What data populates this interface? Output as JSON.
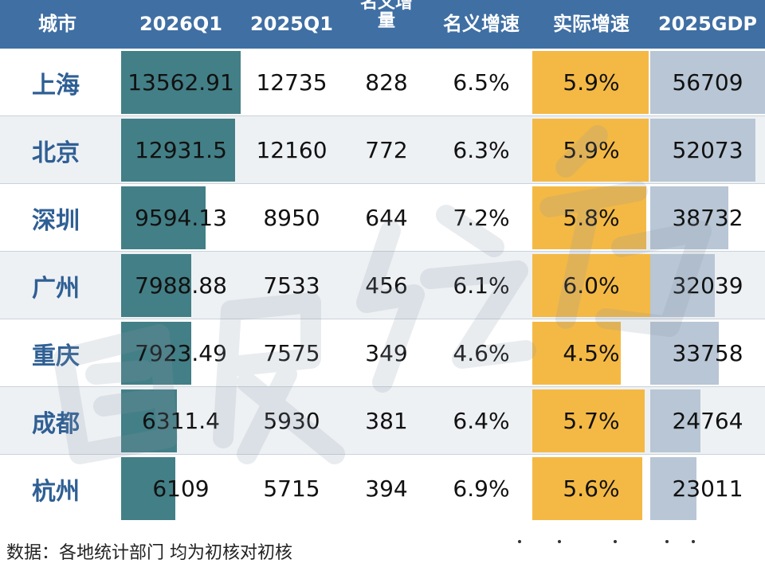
{
  "headers": {
    "city": "城市",
    "q1_2026": "2026Q1",
    "q1_2025": "2025Q1",
    "nominal_increase_partial": "名义增\n量",
    "nominal_growth": "名义增速",
    "real_growth": "实际增速",
    "gdp_2025": "2025GDP"
  },
  "chart_data": {
    "type": "table",
    "columns": [
      "城市",
      "2026Q1",
      "2025Q1",
      "名义增量",
      "名义增速",
      "实际增速",
      "2025GDP"
    ],
    "rows": [
      {
        "city": "上海",
        "q1_2026": "13562.91",
        "q1_2025": "12735",
        "increase": "828",
        "nominal": "6.5%",
        "real": "5.9%",
        "gdp": "56709"
      },
      {
        "city": "北京",
        "q1_2026": "12931.5",
        "q1_2025": "12160",
        "increase": "772",
        "nominal": "6.3%",
        "real": "5.9%",
        "gdp": "52073"
      },
      {
        "city": "深圳",
        "q1_2026": "9594.13",
        "q1_2025": "8950",
        "increase": "644",
        "nominal": "7.2%",
        "real": "5.8%",
        "gdp": "38732"
      },
      {
        "city": "广州",
        "q1_2026": "7988.88",
        "q1_2025": "7533",
        "increase": "456",
        "nominal": "6.1%",
        "real": "6.0%",
        "gdp": "32039"
      },
      {
        "city": "重庆",
        "q1_2026": "7923.49",
        "q1_2025": "7575",
        "increase": "349",
        "nominal": "4.6%",
        "real": "4.5%",
        "gdp": "33758"
      },
      {
        "city": "成都",
        "q1_2026": "6311.4",
        "q1_2025": "5930",
        "increase": "381",
        "nominal": "6.4%",
        "real": "5.7%",
        "gdp": "24764"
      },
      {
        "city": "杭州",
        "q1_2026": "6109",
        "q1_2025": "5715",
        "increase": "394",
        "nominal": "6.9%",
        "real": "5.6%",
        "gdp": "23011"
      }
    ],
    "bar_values": {
      "q1_2026": [
        13562.91,
        12931.5,
        9594.13,
        7988.88,
        7923.49,
        6311.4,
        6109
      ],
      "real_growth": [
        5.9,
        5.9,
        5.8,
        6.0,
        4.5,
        5.7,
        5.6
      ],
      "gdp_2025": [
        56709,
        52073,
        38732,
        32039,
        33758,
        24764,
        23011
      ]
    }
  },
  "footer": {
    "source": "数据：各地统计部门  均为初核对初核"
  },
  "colors": {
    "header_bg": "#3f6fa3",
    "header_text": "#ffffff",
    "city_text": "#2f5f94",
    "bar_q1": "#437f86",
    "bar_real": "#f4b945",
    "bar_gdp": "#b8c6d5",
    "row_alt": "#eef1f4"
  }
}
